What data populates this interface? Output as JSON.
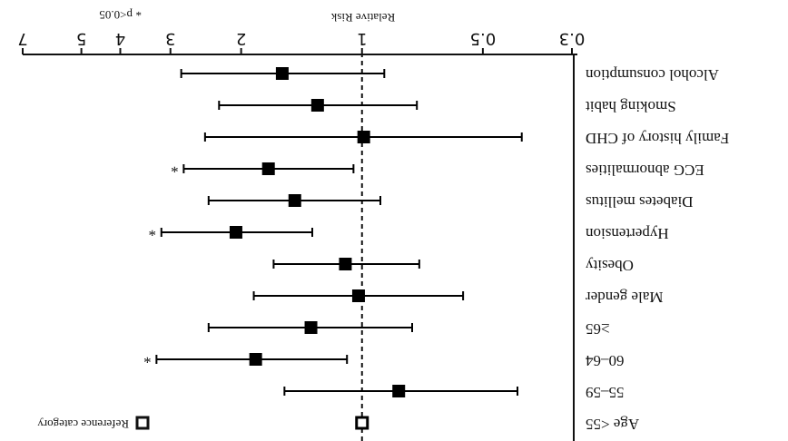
{
  "chart_data": {
    "type": "forest",
    "title": "Relative Risk",
    "categories": [
      "Age  <55",
      "55–59",
      "60–64",
      "≥65",
      "Male gender",
      "Obesity",
      "Hypertension",
      "Diabetes mellitus",
      "ECG abnormalities",
      "Family history of CHD",
      "Smoking habit",
      "Alcohol consumption"
    ],
    "values": [
      1.0,
      0.81,
      1.84,
      1.34,
      1.02,
      1.1,
      2.06,
      1.47,
      1.71,
      0.99,
      1.29,
      1.58
    ],
    "lower": [
      null,
      0.41,
      1.09,
      0.75,
      0.56,
      0.72,
      1.33,
      0.9,
      1.05,
      0.4,
      0.73,
      0.88
    ],
    "upper": [
      null,
      1.56,
      3.25,
      2.41,
      1.86,
      1.66,
      3.16,
      2.41,
      2.78,
      2.46,
      2.27,
      2.82
    ],
    "reference": [
      true,
      false,
      false,
      false,
      false,
      false,
      false,
      false,
      false,
      false,
      false,
      false
    ],
    "significant": [
      false,
      false,
      true,
      false,
      false,
      false,
      true,
      false,
      true,
      false,
      false,
      false
    ],
    "significance_marker": "*",
    "significance_note": "p<0.05",
    "reference_label": "Reference category",
    "xlim": [
      0.3,
      7
    ],
    "xticks": [
      0.3,
      0.5,
      1,
      2,
      3,
      4,
      5,
      7
    ],
    "log_scale": true,
    "color": "#000000"
  }
}
